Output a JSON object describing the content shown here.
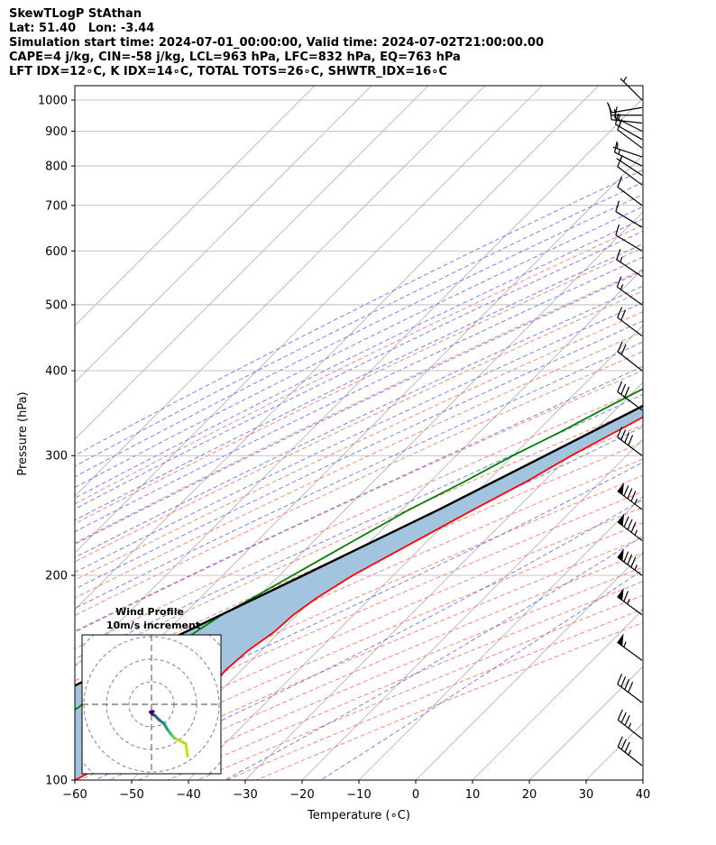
{
  "header": {
    "lines": [
      "SkewTLogP StAthan",
      "Lat: 51.40   Lon: -3.44",
      "Simulation start time: 2024-07-01_00:00:00, Valid time: 2024-07-02T21:00:00.00",
      "CAPE=4 j/kg, CIN=-58 j/kg, LCL=963 hPa, LFC=832 hPa, EQ=763 hPa",
      "LFT IDX=12∘C, K IDX=14∘C, TOTAL TOTS=26∘C, SHWTR_IDX=16∘C"
    ]
  },
  "chart_data": {
    "type": "line",
    "xlabel": "Temperature (∘C)",
    "ylabel": "Pressure (hPa)",
    "xlim": [
      -60,
      40
    ],
    "ylim": [
      1050,
      100
    ],
    "y_scale": "log",
    "x_ticks": [
      -60,
      -50,
      -40,
      -30,
      -20,
      -10,
      0,
      10,
      20,
      30,
      40
    ],
    "x_tick_labels": [
      "−60",
      "−50",
      "−40",
      "−30",
      "−20",
      "−10",
      "0",
      "10",
      "20",
      "30",
      "40"
    ],
    "y_ticks": [
      1000,
      900,
      800,
      700,
      600,
      500,
      400,
      300,
      200,
      100
    ],
    "y_tick_labels": [
      "1000",
      "900",
      "800",
      "700",
      "600",
      "500",
      "400",
      "300",
      "200",
      "100"
    ],
    "grid": true,
    "colors": {
      "temperature": "#ff0000",
      "dewpoint": "#008000",
      "parcel": "#000000",
      "cape_fill": "#a2c4de",
      "dry_adiabats": "#ff6060",
      "moist_adiabats": "#4d4dff",
      "mixing_ratio": "#9932cc",
      "isotherms": "#b0b0b0"
    },
    "temperature_profile": [
      {
        "p": 1000,
        "t": 14.1
      },
      {
        "p": 975,
        "t": 13.6
      },
      {
        "p": 950,
        "t": 12.8
      },
      {
        "p": 925,
        "t": 12.3
      },
      {
        "p": 900,
        "t": 11.4
      },
      {
        "p": 875,
        "t": 10.2
      },
      {
        "p": 850,
        "t": 9.4
      },
      {
        "p": 825,
        "t": 8.6
      },
      {
        "p": 800,
        "t": 7.9
      },
      {
        "p": 775,
        "t": 7.4
      },
      {
        "p": 750,
        "t": 6.6
      },
      {
        "p": 725,
        "t": 5.8
      },
      {
        "p": 700,
        "t": 5.0
      },
      {
        "p": 675,
        "t": 4.6
      },
      {
        "p": 650,
        "t": 4.2
      },
      {
        "p": 625,
        "t": 2.3
      },
      {
        "p": 600,
        "t": 0.3
      },
      {
        "p": 575,
        "t": -1.7
      },
      {
        "p": 550,
        "t": -3.6
      },
      {
        "p": 525,
        "t": -5.5
      },
      {
        "p": 500,
        "t": -7.6
      },
      {
        "p": 475,
        "t": -9.8
      },
      {
        "p": 450,
        "t": -12.2
      },
      {
        "p": 425,
        "t": -14.6
      },
      {
        "p": 400,
        "t": -17.0
      },
      {
        "p": 375,
        "t": -19.9
      },
      {
        "p": 350,
        "t": -22.8
      },
      {
        "p": 325,
        "t": -26.1
      },
      {
        "p": 300,
        "t": -29.7
      },
      {
        "p": 275,
        "t": -33.0
      },
      {
        "p": 250,
        "t": -37.4
      },
      {
        "p": 225,
        "t": -42.0
      },
      {
        "p": 200,
        "t": -47.1
      },
      {
        "p": 185,
        "t": -49.5
      },
      {
        "p": 175,
        "t": -50.6
      },
      {
        "p": 165,
        "t": -51.0
      },
      {
        "p": 155,
        "t": -52.3
      },
      {
        "p": 145,
        "t": -52.8
      },
      {
        "p": 137,
        "t": -52.3
      },
      {
        "p": 128,
        "t": -54.1
      },
      {
        "p": 118,
        "t": -56.6
      },
      {
        "p": 110,
        "t": -57.5
      },
      {
        "p": 104,
        "t": -58.2
      },
      {
        "p": 100,
        "t": -59.9
      }
    ],
    "dewpoint_profile": [
      {
        "p": 1000,
        "t": 11.7
      },
      {
        "p": 975,
        "t": 11.0
      },
      {
        "p": 950,
        "t": 9.3
      },
      {
        "p": 925,
        "t": 5.5
      },
      {
        "p": 900,
        "t": 4.2
      },
      {
        "p": 875,
        "t": 3.2
      },
      {
        "p": 850,
        "t": 4.0
      },
      {
        "p": 825,
        "t": 4.9
      },
      {
        "p": 800,
        "t": 5.7
      },
      {
        "p": 775,
        "t": 6.1
      },
      {
        "p": 750,
        "t": 6.1
      },
      {
        "p": 725,
        "t": 5.8
      },
      {
        "p": 700,
        "t": 4.0
      },
      {
        "p": 675,
        "t": 1.5
      },
      {
        "p": 650,
        "t": -1.7
      },
      {
        "p": 625,
        "t": -2.2
      },
      {
        "p": 600,
        "t": -4.0
      },
      {
        "p": 575,
        "t": -6.1
      },
      {
        "p": 550,
        "t": -8.6
      },
      {
        "p": 525,
        "t": -11.1
      },
      {
        "p": 500,
        "t": -13.7
      },
      {
        "p": 475,
        "t": -16.3
      },
      {
        "p": 450,
        "t": -19.0
      },
      {
        "p": 425,
        "t": -22.0
      },
      {
        "p": 400,
        "t": -25.6
      },
      {
        "p": 375,
        "t": -29.0
      },
      {
        "p": 350,
        "t": -32.4
      },
      {
        "p": 325,
        "t": -35.8
      },
      {
        "p": 300,
        "t": -40.0
      },
      {
        "p": 275,
        "t": -43.9
      },
      {
        "p": 250,
        "t": -48.7
      },
      {
        "p": 225,
        "t": -53.0
      },
      {
        "p": 200,
        "t": -57.7
      },
      {
        "p": 185,
        "t": -60.8
      },
      {
        "p": 175,
        "t": -63.2
      },
      {
        "p": 165,
        "t": -64.8
      },
      {
        "p": 155,
        "t": -66.4
      },
      {
        "p": 145,
        "t": -66.8
      },
      {
        "p": 137,
        "t": -71.7
      },
      {
        "p": 128,
        "t": -72.1
      },
      {
        "p": 118,
        "t": -75.3
      },
      {
        "p": 110,
        "t": -77.8
      },
      {
        "p": 104,
        "t": -79.9
      },
      {
        "p": 100,
        "t": -81.5
      }
    ],
    "parcel_profile": [
      {
        "p": 1030,
        "t": 14.5
      },
      {
        "p": 1000,
        "t": 12.7
      },
      {
        "p": 963,
        "t": 11.4
      },
      {
        "p": 900,
        "t": 9.9
      },
      {
        "p": 850,
        "t": 8.6
      },
      {
        "p": 800,
        "t": 7.1
      },
      {
        "p": 763,
        "t": 6.0
      },
      {
        "p": 700,
        "t": 3.3
      },
      {
        "p": 650,
        "t": 0.6
      },
      {
        "p": 600,
        "t": -2.3
      },
      {
        "p": 550,
        "t": -6.0
      },
      {
        "p": 500,
        "t": -10.1
      },
      {
        "p": 450,
        "t": -14.9
      },
      {
        "p": 400,
        "t": -20.2
      },
      {
        "p": 350,
        "t": -26.6
      },
      {
        "p": 300,
        "t": -34.3
      },
      {
        "p": 250,
        "t": -43.5
      },
      {
        "p": 200,
        "t": -55.8
      },
      {
        "p": 150,
        "t": -72.0
      },
      {
        "p": 125,
        "t": -81.8
      },
      {
        "p": 100,
        "t": -94.7
      }
    ],
    "wind_barbs": [
      {
        "p": 1000,
        "u": 1.5,
        "v": -1.5
      },
      {
        "p": 975,
        "u": 6,
        "v": 1
      },
      {
        "p": 950,
        "u": 8,
        "v": 0
      },
      {
        "p": 925,
        "u": 9,
        "v": -1
      },
      {
        "p": 900,
        "u": 8,
        "v": -4
      },
      {
        "p": 875,
        "u": 7,
        "v": -4
      },
      {
        "p": 850,
        "u": 4,
        "v": -3
      },
      {
        "p": 825,
        "u": 3,
        "v": -1
      },
      {
        "p": 800,
        "u": 6,
        "v": -3
      },
      {
        "p": 775,
        "u": 3,
        "v": -2
      },
      {
        "p": 750,
        "u": 4,
        "v": -3
      },
      {
        "p": 700,
        "u": 4,
        "v": -3
      },
      {
        "p": 650,
        "u": 5,
        "v": -3
      },
      {
        "p": 600,
        "u": 5,
        "v": -3
      },
      {
        "p": 550,
        "u": 6,
        "v": -4
      },
      {
        "p": 500,
        "u": 7,
        "v": -5
      },
      {
        "p": 450,
        "u": 8,
        "v": -6
      },
      {
        "p": 400,
        "u": 9,
        "v": -7
      },
      {
        "p": 350,
        "u": 12,
        "v": -9
      },
      {
        "p": 300,
        "u": 16,
        "v": -12
      },
      {
        "p": 250,
        "u": 36,
        "v": -27
      },
      {
        "p": 225,
        "u": 34,
        "v": -26
      },
      {
        "p": 200,
        "u": 35,
        "v": -26
      },
      {
        "p": 175,
        "u": 26,
        "v": -19
      },
      {
        "p": 150,
        "u": 22,
        "v": -16
      },
      {
        "p": 130,
        "u": 16,
        "v": -12
      },
      {
        "p": 115,
        "u": 14,
        "v": -11
      },
      {
        "p": 105,
        "u": 14,
        "v": -11
      }
    ],
    "wind_profile_inset": {
      "title_line1": "Wind Profile",
      "title_line2": "10m/s increment",
      "ring_increment_ms": 10,
      "hodograph": [
        {
          "u": 16.0,
          "v": -23.0
        },
        {
          "u": 15.2,
          "v": -17.5
        },
        {
          "u": 10.2,
          "v": -15.0
        },
        {
          "u": 8.5,
          "v": -13.1
        },
        {
          "u": 7.0,
          "v": -11.0
        },
        {
          "u": 5.5,
          "v": -8.5
        },
        {
          "u": 3.5,
          "v": -7.0
        },
        {
          "u": 1.5,
          "v": -5.0
        },
        {
          "u": 0.6,
          "v": -4.5
        },
        {
          "u": 0.0,
          "v": -4.0
        },
        {
          "u": -0.5,
          "v": -3.4
        },
        {
          "u": 0.8,
          "v": -3.2
        }
      ]
    }
  }
}
